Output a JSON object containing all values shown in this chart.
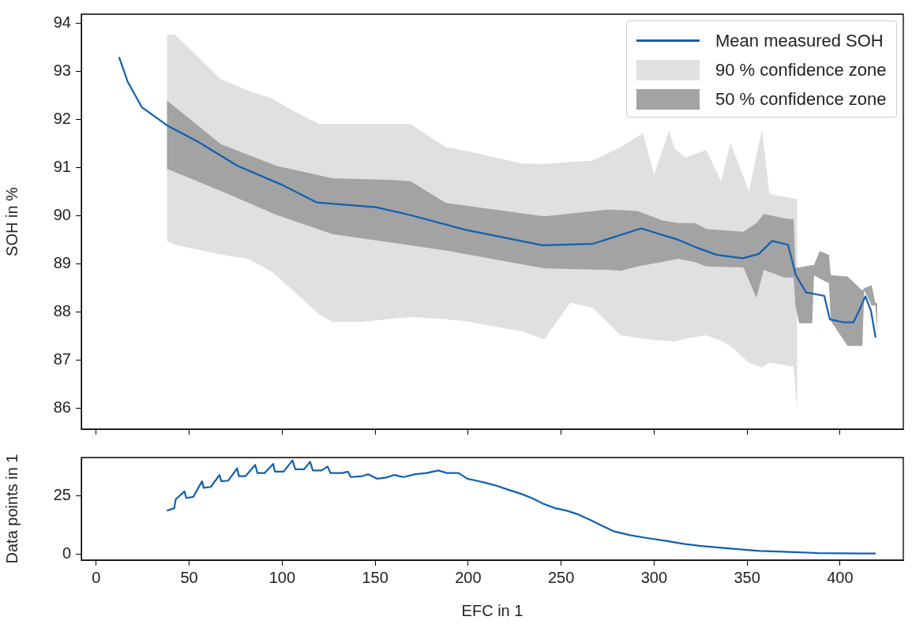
{
  "chart_data": [
    {
      "type": "line",
      "ylabel": "SOH in %",
      "xlim": [
        -8,
        434
      ],
      "xticks": [
        0,
        50,
        100,
        150,
        200,
        250,
        300,
        350,
        400
      ],
      "ylim": [
        85.57,
        94.19
      ],
      "yticks": [
        86,
        87,
        88,
        89,
        90,
        91,
        92,
        93,
        94
      ],
      "tick_labels": "y",
      "legend": "top right",
      "series": [
        {
          "name": "Mean measured SOH",
          "color": "#1060b0",
          "x": [
            12.3,
            16.9,
            24.5,
            38.1,
            54.8,
            76.0,
            100.2,
            118.5,
            150.3,
            168.6,
            198.7,
            239.9,
            267.1,
            293,
            312.5,
            322.3,
            333.8,
            347.8,
            356.3,
            363.5,
            372.0,
            376.2,
            381.7,
            391.5,
            394.5,
            401.7,
            407.2,
            410.2,
            413.6,
            416.6,
            419.1
          ],
          "values": [
            93.3,
            92.79,
            92.26,
            91.88,
            91.54,
            91.04,
            90.64,
            90.28,
            90.18,
            90.02,
            89.71,
            89.39,
            89.42,
            89.74,
            89.51,
            89.35,
            89.19,
            89.12,
            89.21,
            89.48,
            89.4,
            88.77,
            88.41,
            88.34,
            87.85,
            87.79,
            87.79,
            88.03,
            88.33,
            88.03,
            87.47
          ]
        },
        {
          "name": "90 % confidence zone",
          "color": "#e0e0e0",
          "values": [
            null,
            null,
            null,
            null,
            null,
            null,
            null,
            null,
            null,
            null,
            null,
            null,
            null,
            null,
            null,
            null,
            null,
            null,
            null,
            null,
            null,
            null,
            null,
            null,
            null,
            null,
            null,
            null,
            null,
            null
          ],
          "x": [
            38,
            42,
            67,
            82,
            94,
            105,
            120,
            127,
            143,
            169,
            188,
            199,
            229,
            241,
            255,
            267,
            282,
            294,
            300,
            308,
            311,
            317,
            328,
            336,
            341,
            351,
            358,
            362,
            375,
            377
          ],
          "upper": [
            93.75,
            93.78,
            92.84,
            92.6,
            92.45,
            92.2,
            91.91,
            91.91,
            91.91,
            91.91,
            91.43,
            91.35,
            91.09,
            91.08,
            91.12,
            91.15,
            91.43,
            91.72,
            90.86,
            91.77,
            91.4,
            91.21,
            91.37,
            90.72,
            91.52,
            90.51,
            91.8,
            90.46,
            90.36,
            90.36
          ],
          "lower": [
            89.48,
            89.4,
            89.2,
            89.1,
            88.85,
            88.48,
            87.95,
            87.8,
            87.8,
            87.9,
            87.85,
            87.81,
            87.6,
            87.44,
            88.2,
            88.09,
            87.52,
            87.45,
            87.42,
            87.4,
            87.38,
            87.45,
            87.52,
            87.4,
            87.3,
            86.95,
            86.85,
            86.95,
            86.87,
            85.92
          ]
        },
        {
          "name": "50 % confidence zone",
          "color": "#a3a3a3",
          "values": [
            null,
            null,
            null,
            null,
            null,
            null,
            null,
            null,
            null,
            null,
            null,
            null,
            null,
            null,
            null,
            null,
            null,
            null,
            null,
            null,
            null,
            null,
            null,
            null,
            null,
            null,
            null,
            null,
            null,
            null,
            null,
            null,
            null
          ],
          "x": [
            38,
            67,
            97,
            127,
            158,
            169,
            188,
            241,
            275,
            282,
            291,
            305,
            313,
            322,
            328,
            348,
            355,
            359,
            370,
            375,
            376,
            378,
            385,
            386,
            389,
            394,
            395,
            404,
            412,
            413,
            417,
            419,
            420
          ],
          "upper": [
            92.4,
            91.49,
            91.04,
            90.78,
            90.75,
            90.72,
            90.27,
            89.99,
            90.13,
            90.12,
            90.1,
            89.9,
            89.85,
            89.85,
            89.73,
            89.67,
            89.85,
            90.04,
            89.95,
            89.93,
            88.93,
            88.93,
            88.98,
            88.98,
            89.27,
            89.19,
            88.77,
            88.74,
            88.45,
            88.5,
            88.56,
            88.19,
            88.19
          ],
          "lower": [
            90.98,
            90.52,
            90.02,
            89.62,
            89.45,
            89.39,
            89.28,
            88.91,
            88.88,
            88.86,
            88.95,
            89.05,
            89.11,
            89.04,
            88.95,
            88.93,
            88.3,
            88.88,
            88.72,
            88.72,
            88.14,
            87.77,
            87.77,
            88.77,
            88.7,
            88.6,
            87.82,
            87.3,
            87.3,
            88.45,
            88.14,
            88.14,
            87.6
          ]
        }
      ]
    },
    {
      "type": "line",
      "xlabel": "EFC in 1",
      "ylabel": "Data points in 1",
      "xlim": [
        -8,
        434
      ],
      "xticks": [
        0,
        50,
        100,
        150,
        200,
        250,
        300,
        350,
        400
      ],
      "ylim": [
        -2.5,
        41.1
      ],
      "yticks": [
        0,
        25
      ],
      "series": [
        {
          "color": "#1060b0",
          "x": [
            38,
            42,
            42.8,
            47.5,
            48.4,
            52.2,
            56.9,
            57.8,
            61.6,
            66.3,
            67.3,
            71,
            75.8,
            76.7,
            80.3,
            85.5,
            86.7,
            90.5,
            95.2,
            96.1,
            100.8,
            105.5,
            107.1,
            111.8,
            115,
            116.5,
            121.2,
            124.4,
            126,
            132.2,
            135.4,
            136.9,
            143.1,
            146.3,
            151,
            155.8,
            160.5,
            165.2,
            171.5,
            177.7,
            183.9,
            188.7,
            194.9,
            199.6,
            204.3,
            209.1,
            215.3,
            221.7,
            228,
            234.2,
            240.3,
            246.7,
            253,
            259.3,
            265.6,
            271.8,
            278.1,
            287.5,
            296.8,
            306.4,
            315.8,
            325.3,
            341,
            356.7,
            372.4,
            388,
            412.5,
            419.1
          ],
          "values": [
            18.5,
            19.6,
            23.4,
            26.7,
            23.9,
            24.4,
            31.0,
            28.2,
            28.6,
            33.7,
            31.0,
            31.3,
            36.5,
            33.2,
            33.2,
            38,
            34.5,
            34.5,
            38.4,
            35.1,
            35.1,
            39.9,
            36.1,
            36.1,
            39.3,
            35.6,
            35.6,
            37.3,
            34.5,
            34.5,
            35.1,
            32.8,
            33.2,
            34.0,
            32.1,
            32.6,
            33.7,
            32.8,
            34.0,
            34.5,
            35.6,
            34.5,
            34.5,
            32.1,
            31.3,
            30.4,
            29.1,
            27.4,
            25.8,
            23.9,
            21.5,
            19.6,
            18.5,
            16.9,
            14.6,
            12.2,
            9.8,
            8.0,
            6.8,
            5.7,
            4.4,
            3.5,
            2.4,
            1.4,
            1.0,
            0.5,
            0.3,
            0.3
          ]
        }
      ]
    }
  ]
}
